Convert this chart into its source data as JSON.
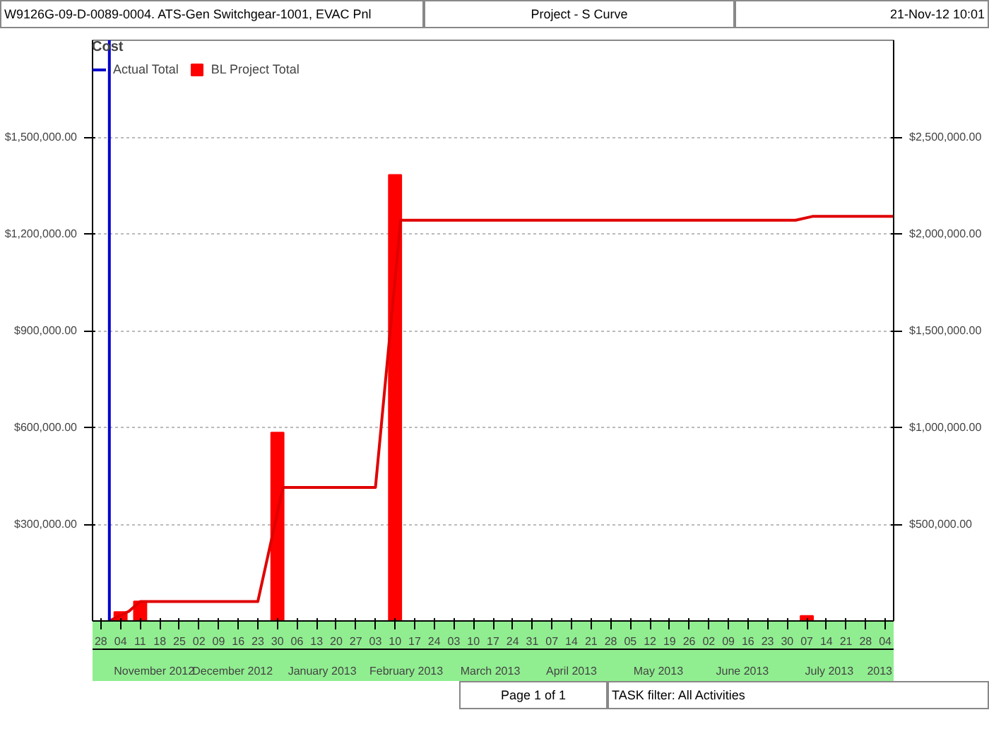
{
  "chart_data": {
    "type": "bar",
    "title": "Project - S Curve",
    "annotations": [
      "W9126G-09-D-0089-0004. ATS-Gen Switchgear-1001, EVAC Pnl",
      "21-Nov-12 10:01",
      "Page 1 of 1",
      "TASK filter: All Activities"
    ],
    "legend_title": "Cost",
    "series": [
      {
        "name": "BL Project Total",
        "color": "#ff0000",
        "x": [
          "2012-11-04",
          "2012-11-11",
          "2012-12-30",
          "2013-02-10",
          "2013-07-07"
        ],
        "values": [
          28000,
          61000,
          584000,
          1383000,
          16000
        ]
      },
      {
        "type": "line",
        "axis": "y2",
        "color": "#e00000",
        "x": [
          "2012-10-31",
          "2012-11-07",
          "2012-11-11",
          "2012-12-23",
          "2013-01-01",
          "2013-02-03",
          "2013-02-12",
          "2013-07-03",
          "2013-07-09",
          "2013-08-07"
        ],
        "values": [
          0,
          50000,
          100000,
          100000,
          690000,
          690000,
          2070000,
          2070000,
          2090000,
          2090000
        ]
      }
    ],
    "ref_lines": [
      {
        "axis": "x",
        "value": "2012-10-31",
        "label": "Actual Total",
        "color": "#0000cc"
      }
    ],
    "xlim": [
      "2012-10-25",
      "2013-08-07"
    ],
    "xticks": [
      {
        "value": "2012-10-28",
        "label": "28"
      },
      {
        "value": "2012-11-04",
        "label": "04"
      },
      {
        "value": "2012-11-11",
        "label": "11"
      },
      {
        "value": "2012-11-18",
        "label": "18"
      },
      {
        "value": "2012-11-25",
        "label": "25"
      },
      {
        "value": "2012-12-02",
        "label": "02"
      },
      {
        "value": "2012-12-09",
        "label": "09"
      },
      {
        "value": "2012-12-16",
        "label": "16"
      },
      {
        "value": "2012-12-23",
        "label": "23"
      },
      {
        "value": "2012-12-30",
        "label": "30"
      },
      {
        "value": "2013-01-06",
        "label": "06"
      },
      {
        "value": "2013-01-13",
        "label": "13"
      },
      {
        "value": "2013-01-20",
        "label": "20"
      },
      {
        "value": "2013-01-27",
        "label": "27"
      },
      {
        "value": "2013-02-03",
        "label": "03"
      },
      {
        "value": "2013-02-10",
        "label": "10"
      },
      {
        "value": "2013-02-17",
        "label": "17"
      },
      {
        "value": "2013-02-24",
        "label": "24"
      },
      {
        "value": "2013-03-03",
        "label": "03"
      },
      {
        "value": "2013-03-10",
        "label": "10"
      },
      {
        "value": "2013-03-17",
        "label": "17"
      },
      {
        "value": "2013-03-24",
        "label": "24"
      },
      {
        "value": "2013-03-31",
        "label": "31"
      },
      {
        "value": "2013-04-07",
        "label": "07"
      },
      {
        "value": "2013-04-14",
        "label": "14"
      },
      {
        "value": "2013-04-21",
        "label": "21"
      },
      {
        "value": "2013-04-28",
        "label": "28"
      },
      {
        "value": "2013-05-05",
        "label": "05"
      },
      {
        "value": "2013-05-12",
        "label": "12"
      },
      {
        "value": "2013-05-19",
        "label": "19"
      },
      {
        "value": "2013-05-26",
        "label": "26"
      },
      {
        "value": "2013-06-02",
        "label": "02"
      },
      {
        "value": "2013-06-09",
        "label": "09"
      },
      {
        "value": "2013-06-16",
        "label": "16"
      },
      {
        "value": "2013-06-23",
        "label": "23"
      },
      {
        "value": "2013-06-30",
        "label": "30"
      },
      {
        "value": "2013-07-07",
        "label": "07"
      },
      {
        "value": "2013-07-14",
        "label": "14"
      },
      {
        "value": "2013-07-21",
        "label": "21"
      },
      {
        "value": "2013-07-28",
        "label": "28"
      },
      {
        "value": "2013-08-04",
        "label": "04"
      }
    ],
    "x2lim": [
      "2012-10-25",
      "2013-08-07"
    ],
    "x2ticks": [
      {
        "value": "2012-11-16",
        "label": "November 2012"
      },
      {
        "value": "2012-12-14",
        "label": "December 2012"
      },
      {
        "value": "2013-01-15",
        "label": "January 2013"
      },
      {
        "value": "2013-02-14",
        "label": "February 2013"
      },
      {
        "value": "2013-03-16",
        "label": "March 2013"
      },
      {
        "value": "2013-04-14",
        "label": "April 2013"
      },
      {
        "value": "2013-05-15",
        "label": "May 2013"
      },
      {
        "value": "2013-06-14",
        "label": "June 2013"
      },
      {
        "value": "2013-07-15",
        "label": "July 2013"
      },
      {
        "value": "2013-08-02",
        "label": "2013"
      }
    ],
    "ylim": [
      0,
      1800000
    ],
    "yticks": [
      {
        "value": 300000,
        "label": "$300,000.00"
      },
      {
        "value": 600000,
        "label": "$600,000.00"
      },
      {
        "value": 900000,
        "label": "$900,000.00"
      },
      {
        "value": 1200000,
        "label": "$1,200,000.00"
      },
      {
        "value": 1500000,
        "label": "$1,500,000.00"
      }
    ],
    "y2lim": [
      0,
      3000000
    ],
    "y2ticks": [
      {
        "value": 500000,
        "label": "$500,000.00"
      },
      {
        "value": 1000000,
        "label": "$1,000,000.00"
      },
      {
        "value": 1500000,
        "label": "$1,500,000.00"
      },
      {
        "value": 2000000,
        "label": "$2,000,000.00"
      },
      {
        "value": 2500000,
        "label": "$2,500,000.00"
      }
    ],
    "grid": "y",
    "legend": "top left"
  }
}
